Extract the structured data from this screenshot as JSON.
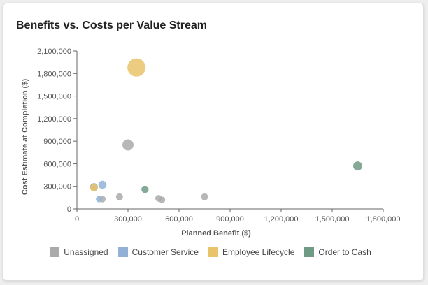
{
  "chart_data": {
    "type": "scatter",
    "title": "Benefits vs. Costs per Value Stream",
    "xlabel": "Planned Benefit ($)",
    "ylabel": "Cost Estimate at Completion ($)",
    "xlim": [
      0,
      1800000
    ],
    "ylim": [
      0,
      2100000
    ],
    "x_ticks": [
      0,
      300000,
      600000,
      900000,
      1200000,
      1500000,
      1800000
    ],
    "x_tick_labels": [
      "0",
      "300,000",
      "600,000",
      "900,000",
      "1,200,000",
      "1,500,000",
      "1,800,000"
    ],
    "y_ticks": [
      0,
      300000,
      600000,
      900000,
      1200000,
      1500000,
      1800000,
      2100000
    ],
    "y_tick_labels": [
      "0",
      "300,000",
      "600,000",
      "900,000",
      "1,200,000",
      "1,500,000",
      "1,800,000",
      "2,100,000"
    ],
    "legend_position": "bottom",
    "grid": false,
    "series": [
      {
        "name": "Unassigned",
        "color": "#aaaaaa",
        "points": [
          {
            "x": 100000,
            "y": 290000,
            "size": 1.5
          },
          {
            "x": 150000,
            "y": 130000,
            "size": 1
          },
          {
            "x": 250000,
            "y": 160000,
            "size": 1.2
          },
          {
            "x": 300000,
            "y": 850000,
            "size": 3
          },
          {
            "x": 480000,
            "y": 140000,
            "size": 1.1
          },
          {
            "x": 500000,
            "y": 120000,
            "size": 1
          },
          {
            "x": 750000,
            "y": 160000,
            "size": 1.2
          }
        ]
      },
      {
        "name": "Customer Service",
        "color": "#93b1d6",
        "points": [
          {
            "x": 130000,
            "y": 130000,
            "size": 1
          },
          {
            "x": 150000,
            "y": 320000,
            "size": 1.6
          }
        ]
      },
      {
        "name": "Employee Lifecycle",
        "color": "#e8c36a",
        "points": [
          {
            "x": 350000,
            "y": 1880000,
            "size": 8
          },
          {
            "x": 100000,
            "y": 280000,
            "size": 1.3
          }
        ]
      },
      {
        "name": "Order to Cash",
        "color": "#6f9a84",
        "points": [
          {
            "x": 400000,
            "y": 260000,
            "size": 1.3
          },
          {
            "x": 1650000,
            "y": 570000,
            "size": 2
          }
        ]
      }
    ]
  }
}
